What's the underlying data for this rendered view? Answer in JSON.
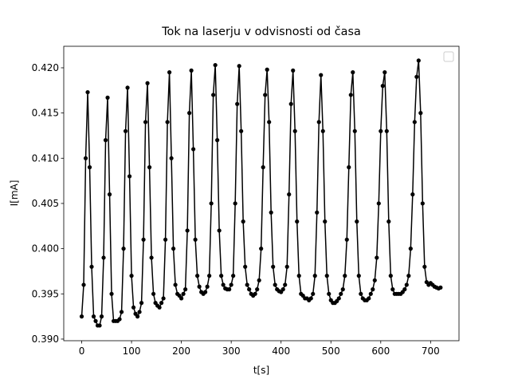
{
  "chart_data": {
    "type": "line",
    "title": "Tok na laserju v odvisnosti od časa",
    "xlabel": "t[s]",
    "ylabel": "I[mA]",
    "x": [
      0,
      4,
      8,
      12,
      16,
      20,
      24,
      28,
      32,
      36,
      40,
      44,
      48,
      52,
      56,
      60,
      64,
      68,
      72,
      76,
      80,
      84,
      88,
      92,
      96,
      100,
      104,
      108,
      112,
      116,
      120,
      124,
      128,
      132,
      136,
      140,
      144,
      148,
      152,
      156,
      160,
      164,
      168,
      172,
      176,
      180,
      184,
      188,
      192,
      196,
      200,
      204,
      208,
      212,
      216,
      220,
      224,
      228,
      232,
      236,
      240,
      244,
      248,
      252,
      256,
      260,
      264,
      268,
      272,
      276,
      280,
      284,
      288,
      292,
      296,
      300,
      304,
      308,
      312,
      316,
      320,
      324,
      328,
      332,
      336,
      340,
      344,
      348,
      352,
      356,
      360,
      364,
      368,
      372,
      376,
      380,
      384,
      388,
      392,
      396,
      400,
      404,
      408,
      412,
      416,
      420,
      424,
      428,
      432,
      436,
      440,
      444,
      448,
      452,
      456,
      460,
      464,
      468,
      472,
      476,
      480,
      484,
      488,
      492,
      496,
      500,
      504,
      508,
      512,
      516,
      520,
      524,
      528,
      532,
      536,
      540,
      544,
      548,
      552,
      556,
      560,
      564,
      568,
      572,
      576,
      580,
      584,
      588,
      592,
      596,
      600,
      604,
      608,
      612,
      616,
      620,
      624,
      628,
      632,
      636,
      640,
      644,
      648,
      652,
      656,
      660,
      664,
      668,
      672,
      676,
      680,
      684,
      688,
      692,
      696,
      700,
      704,
      708,
      712,
      716,
      720
    ],
    "series": [
      {
        "color": "#000000",
        "values": [
          0.3925,
          0.396,
          0.41,
          0.4173,
          0.409,
          0.398,
          0.3925,
          0.392,
          0.3915,
          0.3915,
          0.3925,
          0.399,
          0.412,
          0.4167,
          0.406,
          0.395,
          0.392,
          0.392,
          0.392,
          0.3922,
          0.393,
          0.4,
          0.413,
          0.4178,
          0.408,
          0.397,
          0.3935,
          0.3928,
          0.3925,
          0.393,
          0.394,
          0.401,
          0.414,
          0.4183,
          0.409,
          0.399,
          0.395,
          0.394,
          0.3937,
          0.3935,
          0.394,
          0.3945,
          0.401,
          0.414,
          0.4195,
          0.41,
          0.4,
          0.396,
          0.395,
          0.3948,
          0.3945,
          0.395,
          0.3955,
          0.402,
          0.415,
          0.4197,
          0.411,
          0.401,
          0.397,
          0.3958,
          0.3952,
          0.395,
          0.3952,
          0.3958,
          0.397,
          0.405,
          0.417,
          0.4203,
          0.412,
          0.402,
          0.397,
          0.396,
          0.3956,
          0.3955,
          0.3955,
          0.396,
          0.397,
          0.405,
          0.416,
          0.4202,
          0.413,
          0.403,
          0.398,
          0.396,
          0.3955,
          0.395,
          0.3948,
          0.395,
          0.3955,
          0.3965,
          0.4,
          0.409,
          0.417,
          0.4198,
          0.414,
          0.404,
          0.398,
          0.396,
          0.3955,
          0.3953,
          0.3952,
          0.3955,
          0.396,
          0.398,
          0.406,
          0.416,
          0.4197,
          0.413,
          0.403,
          0.397,
          0.395,
          0.3948,
          0.3945,
          0.3945,
          0.3943,
          0.3945,
          0.395,
          0.397,
          0.404,
          0.414,
          0.4192,
          0.413,
          0.403,
          0.397,
          0.395,
          0.3943,
          0.394,
          0.394,
          0.3942,
          0.3945,
          0.395,
          0.3955,
          0.397,
          0.401,
          0.409,
          0.417,
          0.4195,
          0.413,
          0.403,
          0.397,
          0.395,
          0.3945,
          0.3943,
          0.3943,
          0.3945,
          0.395,
          0.3955,
          0.3965,
          0.399,
          0.405,
          0.413,
          0.418,
          0.4195,
          0.413,
          0.403,
          0.397,
          0.3955,
          0.395,
          0.395,
          0.395,
          0.395,
          0.3952,
          0.3955,
          0.396,
          0.397,
          0.4,
          0.406,
          0.414,
          0.419,
          0.4208,
          0.415,
          0.405,
          0.398,
          0.3963,
          0.396,
          0.3962,
          0.396,
          0.3958,
          0.3957,
          0.3956,
          0.3957
        ]
      }
    ],
    "xlim": [
      -36,
      757
    ],
    "xticks": [
      0,
      100,
      200,
      300,
      400,
      500,
      600,
      700
    ],
    "ylim": [
      0.38982,
      0.42238
    ],
    "yticks": [
      {
        "value": 0.39,
        "label": "0.390"
      },
      0.395,
      {
        "value": 0.4,
        "label": "0.400"
      },
      0.405,
      {
        "value": 0.41,
        "label": "0.410"
      },
      0.415,
      {
        "value": 0.42,
        "label": "0.420"
      }
    ]
  }
}
